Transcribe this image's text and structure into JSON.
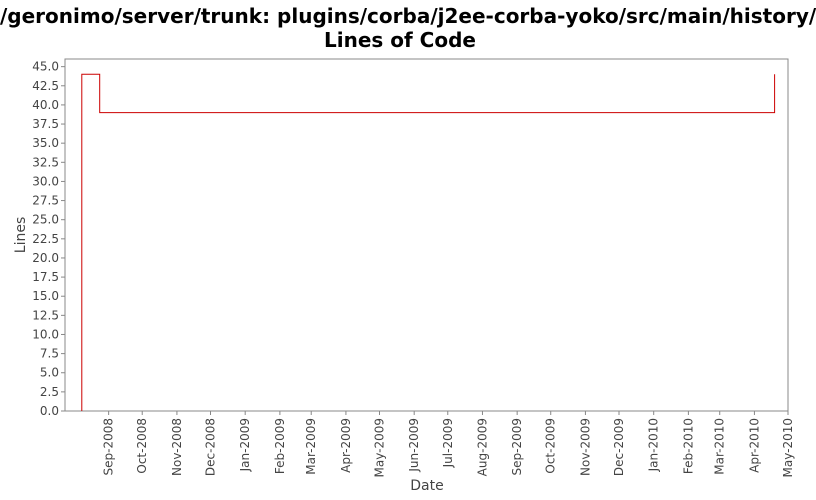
{
  "title_line1": "/geronimo/server/trunk: plugins/corba/j2ee-corba-yoko/src/main/history/",
  "title_line2": "Lines of Code",
  "chart_data": {
    "type": "line",
    "title": "/geronimo/server/trunk: plugins/corba/j2ee-corba-yoko/src/main/history/ Lines of Code",
    "xlabel": "Date",
    "ylabel": "Lines",
    "x_scale": "date",
    "xlim": [
      "2008-07-24",
      "2010-05-01"
    ],
    "ylim": [
      0,
      46
    ],
    "yticks": [
      0.0,
      2.5,
      5.0,
      7.5,
      10.0,
      12.5,
      15.0,
      17.5,
      20.0,
      22.5,
      25.0,
      27.5,
      30.0,
      32.5,
      35.0,
      37.5,
      40.0,
      42.5,
      45.0
    ],
    "ytick_labels": [
      "0.0",
      "2.5",
      "5.0",
      "7.5",
      "10.0",
      "12.5",
      "15.0",
      "17.5",
      "20.0",
      "22.5",
      "25.0",
      "27.5",
      "30.0",
      "32.5",
      "35.0",
      "37.5",
      "40.0",
      "42.5",
      "45.0"
    ],
    "xticks": [
      "2008-09-01",
      "2008-10-01",
      "2008-11-01",
      "2008-12-01",
      "2009-01-01",
      "2009-02-01",
      "2009-03-01",
      "2009-04-01",
      "2009-05-01",
      "2009-06-01",
      "2009-07-01",
      "2009-08-01",
      "2009-09-01",
      "2009-10-01",
      "2009-11-01",
      "2009-12-01",
      "2010-01-01",
      "2010-02-01",
      "2010-03-01",
      "2010-04-01",
      "2010-05-01"
    ],
    "xtick_labels": [
      "Sep-2008",
      "Oct-2008",
      "Nov-2008",
      "Dec-2008",
      "Jan-2009",
      "Feb-2009",
      "Mar-2009",
      "Apr-2009",
      "May-2009",
      "Jun-2009",
      "Jul-2009",
      "Aug-2009",
      "Sep-2009",
      "Oct-2009",
      "Nov-2009",
      "Dec-2009",
      "Jan-2010",
      "Feb-2010",
      "Mar-2010",
      "Apr-2010",
      "May-2010"
    ],
    "series": [
      {
        "color": "#cc0000",
        "step": true,
        "points": [
          {
            "x": "2008-08-08",
            "y": 0
          },
          {
            "x": "2008-08-08",
            "y": 44
          },
          {
            "x": "2008-08-24",
            "y": 44
          },
          {
            "x": "2008-08-24",
            "y": 39
          },
          {
            "x": "2010-04-19",
            "y": 39
          },
          {
            "x": "2010-04-19",
            "y": 44
          }
        ]
      }
    ],
    "grid": false,
    "legend": "none"
  }
}
